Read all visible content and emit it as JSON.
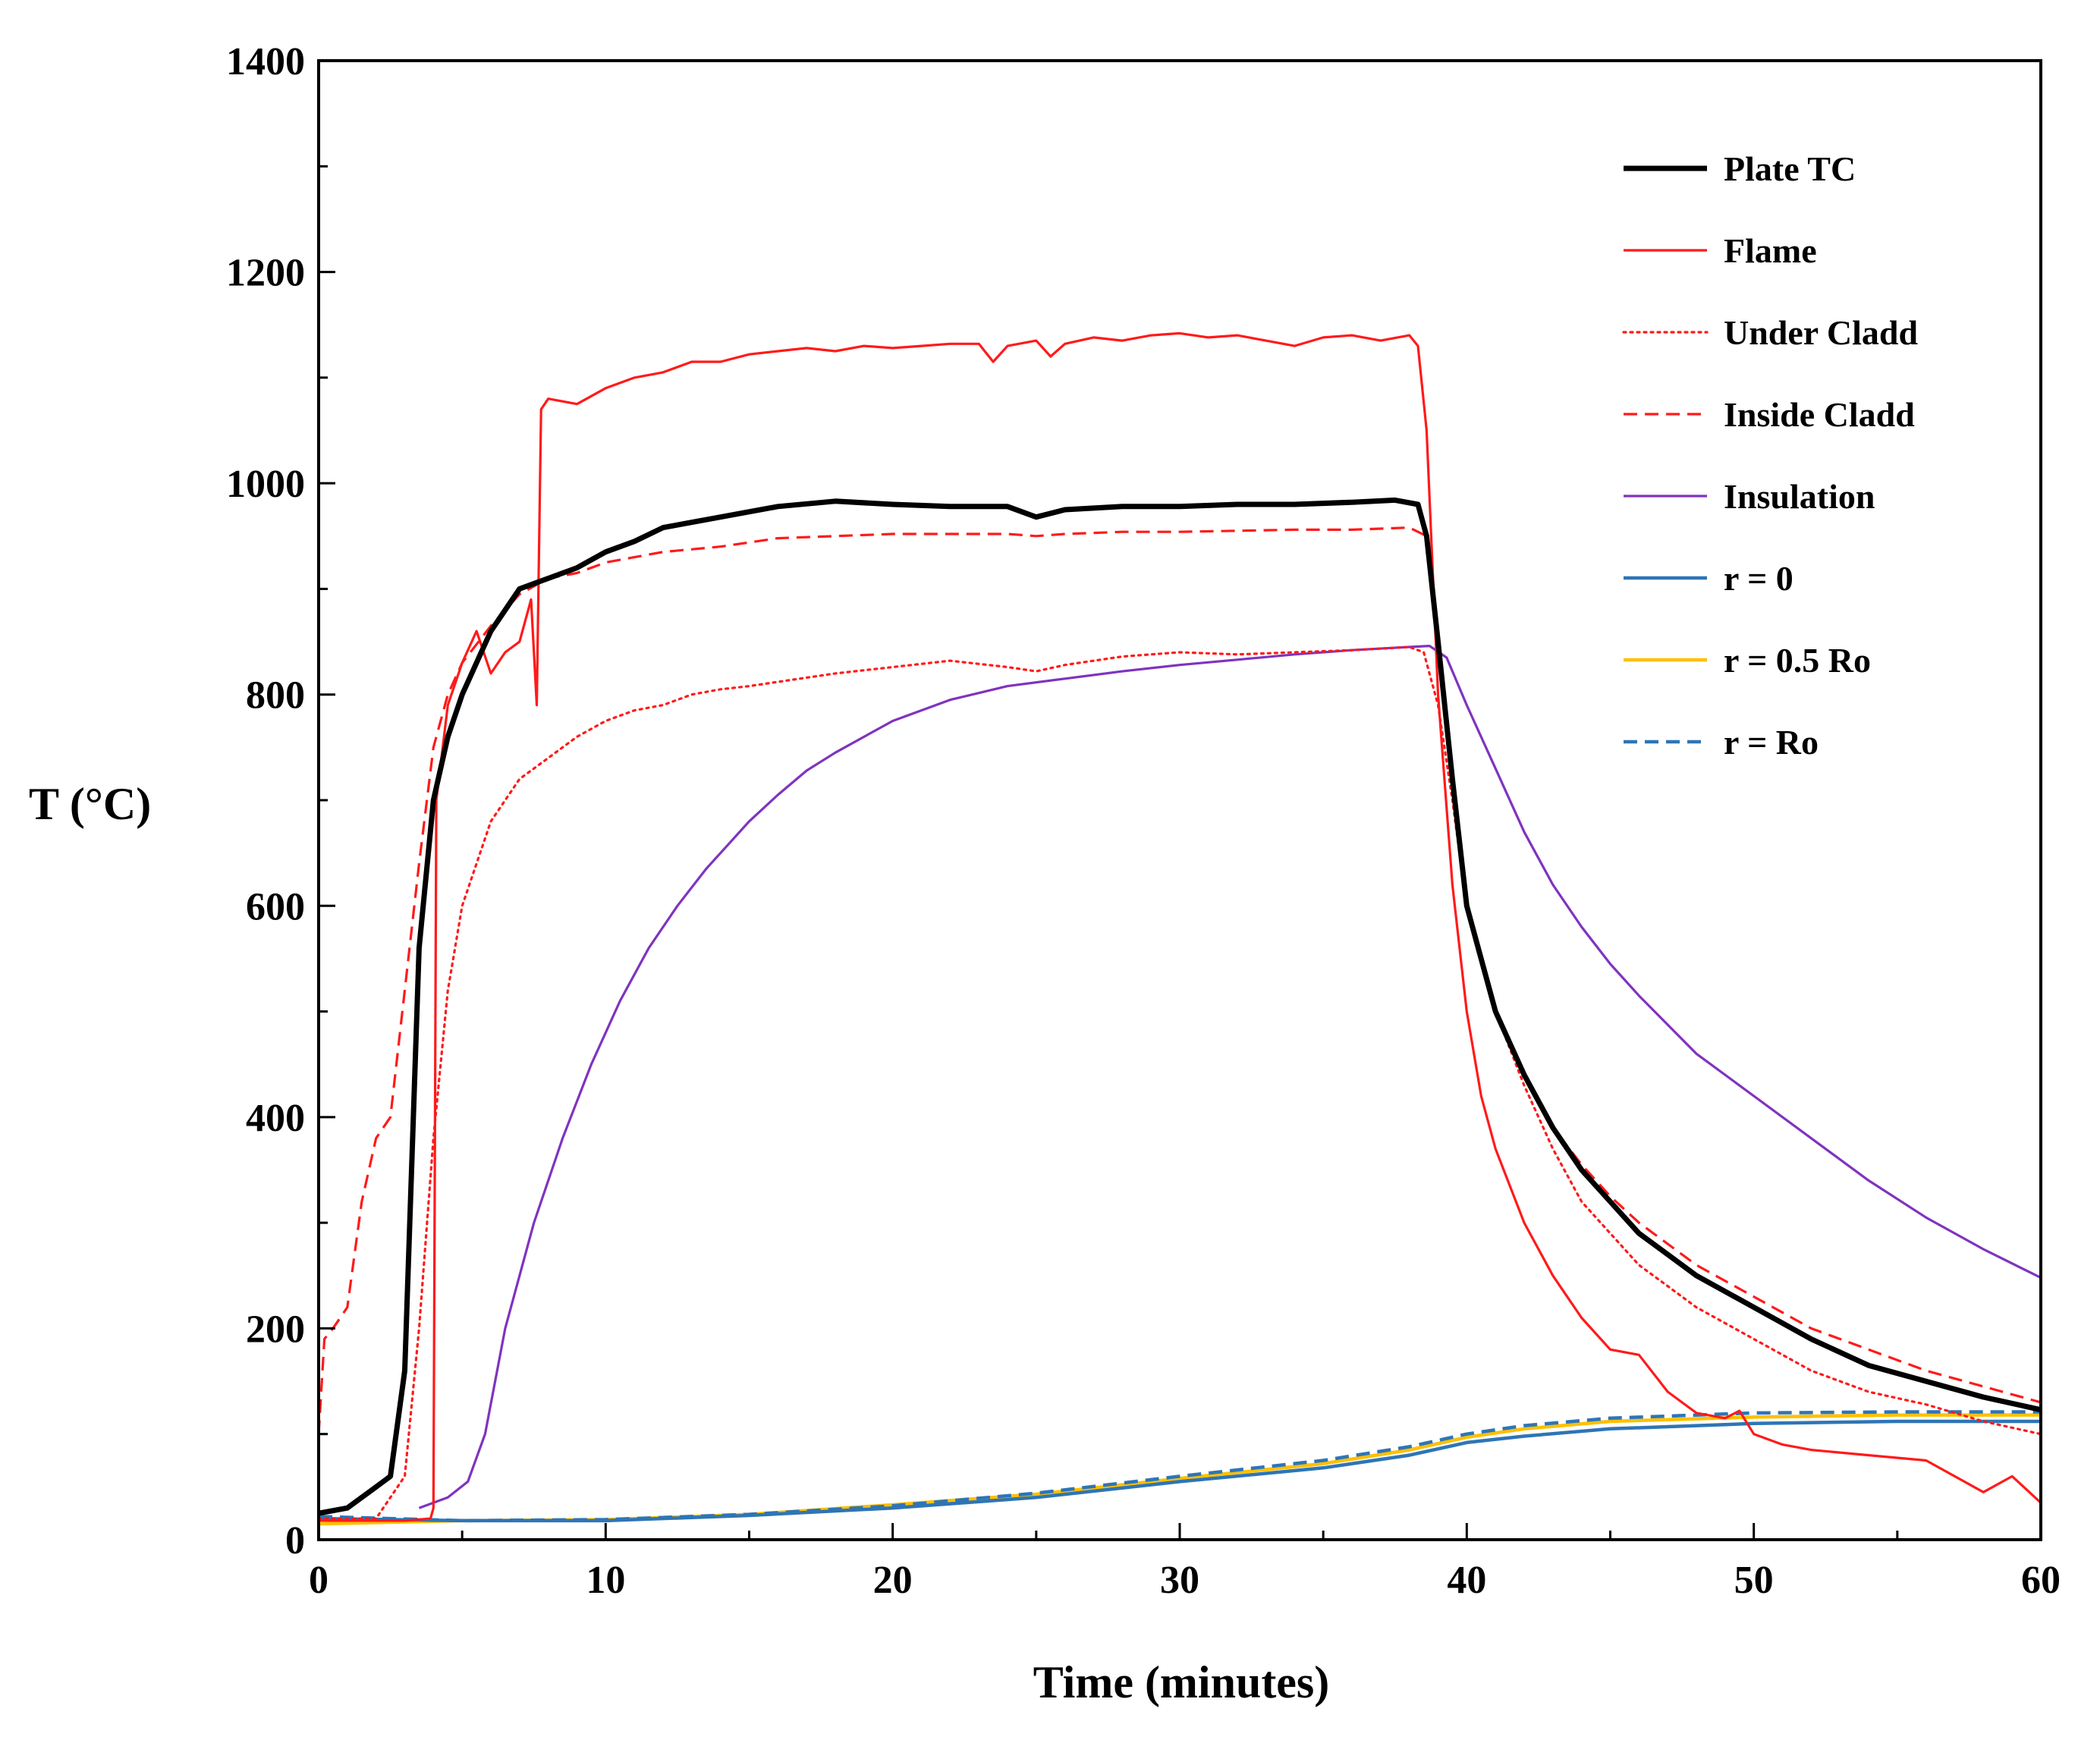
{
  "chart_data": {
    "type": "line",
    "title": "",
    "xlabel": "Time (minutes)",
    "ylabel": "T (°C)",
    "xlim": [
      0,
      60
    ],
    "ylim": [
      0,
      1400
    ],
    "x_ticks": [
      0,
      10,
      20,
      30,
      40,
      50,
      60
    ],
    "y_ticks": [
      0,
      200,
      400,
      600,
      800,
      1000,
      1200,
      1400
    ],
    "grid": false,
    "legend_position": "top-right",
    "series": [
      {
        "name": "Plate TC",
        "color": "#000000",
        "style": "solid",
        "width": "thick",
        "points": [
          [
            0,
            25
          ],
          [
            1,
            30
          ],
          [
            2,
            50
          ],
          [
            2.5,
            60
          ],
          [
            3,
            160
          ],
          [
            3.5,
            560
          ],
          [
            4,
            700
          ],
          [
            4.5,
            760
          ],
          [
            5,
            800
          ],
          [
            6,
            860
          ],
          [
            7,
            900
          ],
          [
            8,
            910
          ],
          [
            9,
            920
          ],
          [
            10,
            935
          ],
          [
            11,
            945
          ],
          [
            12,
            958
          ],
          [
            14,
            968
          ],
          [
            16,
            978
          ],
          [
            18,
            983
          ],
          [
            20,
            980
          ],
          [
            22,
            978
          ],
          [
            24,
            978
          ],
          [
            25,
            968
          ],
          [
            26,
            975
          ],
          [
            28,
            978
          ],
          [
            30,
            978
          ],
          [
            32,
            980
          ],
          [
            34,
            980
          ],
          [
            36,
            982
          ],
          [
            37.5,
            984
          ],
          [
            38.3,
            980
          ],
          [
            38.6,
            950
          ],
          [
            39,
            850
          ],
          [
            39.5,
            720
          ],
          [
            40,
            600
          ],
          [
            41,
            500
          ],
          [
            42,
            440
          ],
          [
            43,
            390
          ],
          [
            44,
            350
          ],
          [
            45,
            320
          ],
          [
            46,
            290
          ],
          [
            47,
            270
          ],
          [
            48,
            250
          ],
          [
            49,
            235
          ],
          [
            50,
            220
          ],
          [
            52,
            190
          ],
          [
            54,
            165
          ],
          [
            56,
            150
          ],
          [
            58,
            135
          ],
          [
            60,
            123
          ]
        ]
      },
      {
        "name": "Flame",
        "color": "#ff1a1a",
        "style": "solid",
        "width": "thin",
        "points": [
          [
            0,
            18
          ],
          [
            3,
            18
          ],
          [
            3.9,
            20
          ],
          [
            4,
            30
          ],
          [
            4.1,
            700
          ],
          [
            4.5,
            790
          ],
          [
            5,
            830
          ],
          [
            5.5,
            860
          ],
          [
            6,
            820
          ],
          [
            6.5,
            840
          ],
          [
            7,
            850
          ],
          [
            7.4,
            890
          ],
          [
            7.6,
            790
          ],
          [
            7.75,
            1070
          ],
          [
            8,
            1080
          ],
          [
            9,
            1075
          ],
          [
            10,
            1090
          ],
          [
            11,
            1100
          ],
          [
            12,
            1105
          ],
          [
            13,
            1115
          ],
          [
            14,
            1115
          ],
          [
            15,
            1122
          ],
          [
            16,
            1125
          ],
          [
            17,
            1128
          ],
          [
            18,
            1125
          ],
          [
            19,
            1130
          ],
          [
            20,
            1128
          ],
          [
            21,
            1130
          ],
          [
            22,
            1132
          ],
          [
            23,
            1132
          ],
          [
            23.5,
            1115
          ],
          [
            24,
            1130
          ],
          [
            25,
            1135
          ],
          [
            25.5,
            1120
          ],
          [
            26,
            1132
          ],
          [
            27,
            1138
          ],
          [
            28,
            1135
          ],
          [
            29,
            1140
          ],
          [
            30,
            1142
          ],
          [
            31,
            1138
          ],
          [
            32,
            1140
          ],
          [
            33,
            1135
          ],
          [
            34,
            1130
          ],
          [
            35,
            1138
          ],
          [
            36,
            1140
          ],
          [
            37,
            1135
          ],
          [
            38,
            1140
          ],
          [
            38.3,
            1130
          ],
          [
            38.6,
            1050
          ],
          [
            39,
            800
          ],
          [
            39.5,
            620
          ],
          [
            40,
            500
          ],
          [
            40.5,
            420
          ],
          [
            41,
            370
          ],
          [
            42,
            300
          ],
          [
            43,
            250
          ],
          [
            44,
            210
          ],
          [
            45,
            180
          ],
          [
            46,
            175
          ],
          [
            47,
            140
          ],
          [
            48,
            120
          ],
          [
            49,
            115
          ],
          [
            49.5,
            122
          ],
          [
            50,
            100
          ],
          [
            51,
            90
          ],
          [
            52,
            85
          ],
          [
            54,
            80
          ],
          [
            56,
            75
          ],
          [
            57,
            60
          ],
          [
            58,
            45
          ],
          [
            59,
            60
          ],
          [
            60,
            35
          ]
        ]
      },
      {
        "name": "Under Cladd",
        "color": "#ff1a1a",
        "style": "dotted",
        "width": "thin",
        "points": [
          [
            0,
            20
          ],
          [
            2,
            20
          ],
          [
            3,
            60
          ],
          [
            3.5,
            200
          ],
          [
            4,
            380
          ],
          [
            4.5,
            520
          ],
          [
            5,
            600
          ],
          [
            6,
            680
          ],
          [
            7,
            720
          ],
          [
            8,
            740
          ],
          [
            9,
            760
          ],
          [
            10,
            775
          ],
          [
            11,
            785
          ],
          [
            12,
            790
          ],
          [
            13,
            800
          ],
          [
            14,
            805
          ],
          [
            15,
            808
          ],
          [
            16,
            812
          ],
          [
            18,
            820
          ],
          [
            20,
            826
          ],
          [
            22,
            832
          ],
          [
            24,
            826
          ],
          [
            25,
            822
          ],
          [
            26,
            828
          ],
          [
            28,
            836
          ],
          [
            30,
            840
          ],
          [
            32,
            838
          ],
          [
            34,
            840
          ],
          [
            36,
            842
          ],
          [
            38,
            845
          ],
          [
            38.5,
            840
          ],
          [
            39,
            790
          ],
          [
            39.5,
            700
          ],
          [
            40,
            600
          ],
          [
            41,
            500
          ],
          [
            42,
            430
          ],
          [
            43,
            370
          ],
          [
            44,
            320
          ],
          [
            45,
            290
          ],
          [
            46,
            260
          ],
          [
            47,
            240
          ],
          [
            48,
            220
          ],
          [
            50,
            190
          ],
          [
            52,
            160
          ],
          [
            54,
            140
          ],
          [
            56,
            128
          ],
          [
            58,
            112
          ],
          [
            60,
            100
          ]
        ]
      },
      {
        "name": "Inside Cladd",
        "color": "#ff1a1a",
        "style": "dashed",
        "width": "thin",
        "points": [
          [
            0,
            100
          ],
          [
            0.2,
            190
          ],
          [
            0.5,
            200
          ],
          [
            1,
            220
          ],
          [
            1.5,
            320
          ],
          [
            2,
            380
          ],
          [
            2.5,
            400
          ],
          [
            3,
            520
          ],
          [
            3.5,
            640
          ],
          [
            4,
            750
          ],
          [
            4.5,
            800
          ],
          [
            5,
            830
          ],
          [
            6,
            865
          ],
          [
            7,
            895
          ],
          [
            8,
            910
          ],
          [
            9,
            915
          ],
          [
            10,
            925
          ],
          [
            11,
            930
          ],
          [
            12,
            935
          ],
          [
            14,
            940
          ],
          [
            16,
            948
          ],
          [
            18,
            950
          ],
          [
            20,
            952
          ],
          [
            22,
            952
          ],
          [
            24,
            952
          ],
          [
            25,
            950
          ],
          [
            26,
            952
          ],
          [
            28,
            954
          ],
          [
            30,
            954
          ],
          [
            32,
            955
          ],
          [
            34,
            956
          ],
          [
            36,
            956
          ],
          [
            38,
            958
          ],
          [
            38.6,
            950
          ],
          [
            39,
            850
          ],
          [
            39.5,
            720
          ],
          [
            40,
            600
          ],
          [
            41,
            500
          ],
          [
            42,
            440
          ],
          [
            43,
            390
          ],
          [
            44,
            355
          ],
          [
            45,
            325
          ],
          [
            46,
            300
          ],
          [
            47,
            280
          ],
          [
            48,
            260
          ],
          [
            50,
            230
          ],
          [
            52,
            200
          ],
          [
            54,
            180
          ],
          [
            56,
            160
          ],
          [
            58,
            145
          ],
          [
            60,
            130
          ]
        ]
      },
      {
        "name": "Insulation",
        "color": "#7f33bf",
        "style": "solid",
        "width": "thin",
        "points": [
          [
            3.5,
            30
          ],
          [
            4.5,
            40
          ],
          [
            5.2,
            55
          ],
          [
            5.8,
            100
          ],
          [
            6.5,
            200
          ],
          [
            7.5,
            300
          ],
          [
            8.5,
            380
          ],
          [
            9.5,
            450
          ],
          [
            10.5,
            510
          ],
          [
            11.5,
            560
          ],
          [
            12.5,
            600
          ],
          [
            13.5,
            635
          ],
          [
            15,
            680
          ],
          [
            16,
            705
          ],
          [
            17,
            728
          ],
          [
            18,
            745
          ],
          [
            20,
            775
          ],
          [
            22,
            795
          ],
          [
            24,
            808
          ],
          [
            26,
            815
          ],
          [
            28,
            822
          ],
          [
            30,
            828
          ],
          [
            32,
            833
          ],
          [
            34,
            838
          ],
          [
            36,
            842
          ],
          [
            38,
            845
          ],
          [
            38.7,
            846
          ],
          [
            39.3,
            835
          ],
          [
            40,
            790
          ],
          [
            41,
            730
          ],
          [
            42,
            670
          ],
          [
            43,
            620
          ],
          [
            44,
            580
          ],
          [
            45,
            545
          ],
          [
            46,
            515
          ],
          [
            48,
            460
          ],
          [
            50,
            420
          ],
          [
            52,
            380
          ],
          [
            54,
            340
          ],
          [
            56,
            305
          ],
          [
            58,
            275
          ],
          [
            60,
            248
          ]
        ]
      },
      {
        "name": "r = 0",
        "color": "#2e75b6",
        "style": "solid",
        "width": "medium",
        "points": [
          [
            0,
            20
          ],
          [
            5,
            18
          ],
          [
            10,
            18
          ],
          [
            15,
            23
          ],
          [
            20,
            30
          ],
          [
            25,
            40
          ],
          [
            30,
            55
          ],
          [
            35,
            68
          ],
          [
            38,
            80
          ],
          [
            40,
            92
          ],
          [
            42,
            98
          ],
          [
            45,
            105
          ],
          [
            50,
            110
          ],
          [
            55,
            112
          ],
          [
            60,
            112
          ]
        ]
      },
      {
        "name": "r = 0.5 Ro",
        "color": "#ffc000",
        "style": "solid",
        "width": "medium",
        "points": [
          [
            0,
            15
          ],
          [
            5,
            18
          ],
          [
            10,
            19
          ],
          [
            15,
            24
          ],
          [
            20,
            33
          ],
          [
            25,
            43
          ],
          [
            30,
            58
          ],
          [
            35,
            72
          ],
          [
            38,
            85
          ],
          [
            40,
            97
          ],
          [
            42,
            105
          ],
          [
            45,
            112
          ],
          [
            50,
            116
          ],
          [
            55,
            118
          ],
          [
            60,
            118
          ]
        ]
      },
      {
        "name": "r = Ro",
        "color": "#2e75b6",
        "style": "dashed",
        "width": "medium",
        "points": [
          [
            0,
            22
          ],
          [
            5,
            18
          ],
          [
            10,
            19
          ],
          [
            15,
            24
          ],
          [
            20,
            32
          ],
          [
            25,
            44
          ],
          [
            30,
            60
          ],
          [
            35,
            75
          ],
          [
            38,
            88
          ],
          [
            40,
            100
          ],
          [
            42,
            108
          ],
          [
            45,
            115
          ],
          [
            50,
            120
          ],
          [
            55,
            121
          ],
          [
            60,
            121
          ]
        ]
      }
    ]
  }
}
